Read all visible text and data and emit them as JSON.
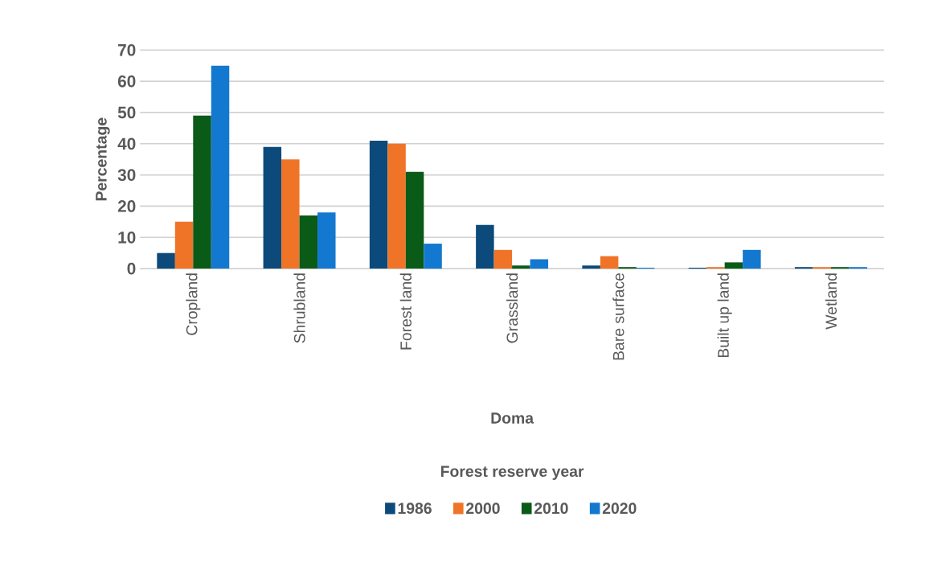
{
  "chart_data": {
    "type": "bar",
    "xlabel": "Doma",
    "ylabel": "Percentage",
    "annotations": [
      "Forest reserve year"
    ],
    "categories": [
      "Cropland",
      "Shrubland",
      "Forest land",
      "Grassland",
      "Bare surface",
      "Built up land",
      "Wetland"
    ],
    "series": [
      {
        "name": "1986",
        "color": "#0b4a7a",
        "values": [
          5,
          39,
          41,
          14,
          1,
          0.3,
          0.5
        ]
      },
      {
        "name": "2000",
        "color": "#f07428",
        "values": [
          15,
          35,
          40,
          6,
          4,
          0.5,
          0.5
        ]
      },
      {
        "name": "2010",
        "color": "#0a5a18",
        "values": [
          49,
          17,
          31,
          1,
          0.5,
          2,
          0.5
        ]
      },
      {
        "name": "2020",
        "color": "#1378d0",
        "values": [
          65,
          18,
          8,
          3,
          0.3,
          6,
          0.5
        ]
      }
    ],
    "ylim": [
      0,
      70
    ],
    "yticks": [
      0,
      10,
      20,
      30,
      40,
      50,
      60,
      70
    ],
    "grid": "y",
    "legend": "bottom"
  }
}
